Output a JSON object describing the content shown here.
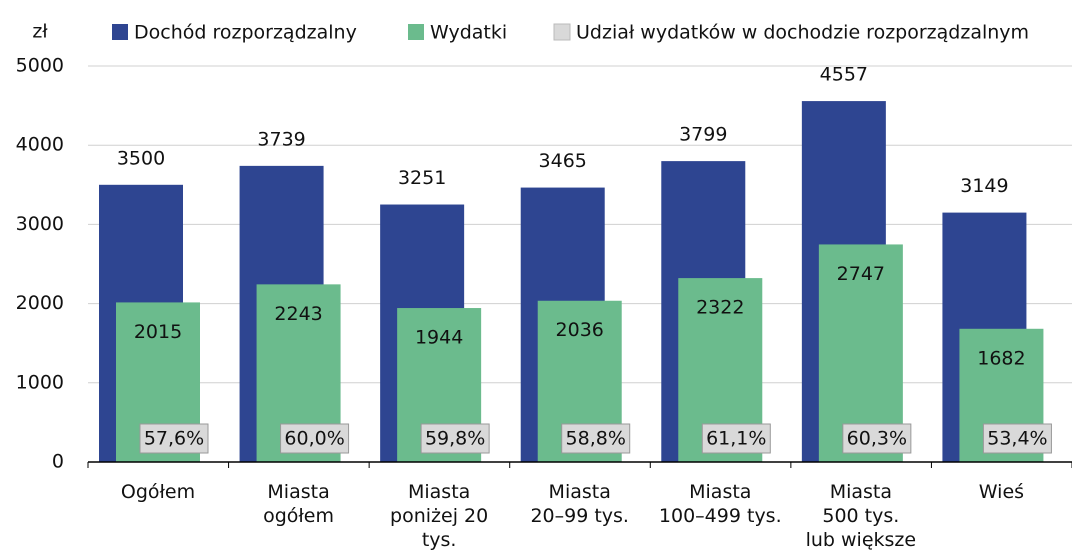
{
  "chart_data": {
    "type": "bar",
    "y_label": "zł",
    "categories": [
      "Ogółem",
      "Miasta\nogółem",
      "Miasta\nponiżej 20\ntys.",
      "Miasta\n20–99 tys.",
      "Miasta\n100–499 tys.",
      "Miasta\n500 tys.\nlub większe",
      "Wieś"
    ],
    "series": [
      {
        "name": "Dochód rozporządzalny",
        "color": "#2e4591",
        "values": [
          3500,
          3739,
          3251,
          3465,
          3799,
          4557,
          3149
        ]
      },
      {
        "name": "Wydatki",
        "color": "#6bbb8d",
        "values": [
          2015,
          2243,
          1944,
          2036,
          2322,
          2747,
          1682
        ]
      },
      {
        "name": "Udział wydatków w dochodzie rozporządzalnym",
        "color": "#d9d9d9",
        "values": [
          57.6,
          60.0,
          59.8,
          58.8,
          61.1,
          60.3,
          53.4
        ],
        "value_labels": [
          "57,6%",
          "60,0%",
          "59,8%",
          "58,8%",
          "61,1%",
          "60,3%",
          "53,4%"
        ]
      }
    ],
    "ylim": [
      0,
      5000
    ],
    "yticks": [
      0,
      1000,
      2000,
      3000,
      4000,
      5000
    ],
    "grid": true
  }
}
